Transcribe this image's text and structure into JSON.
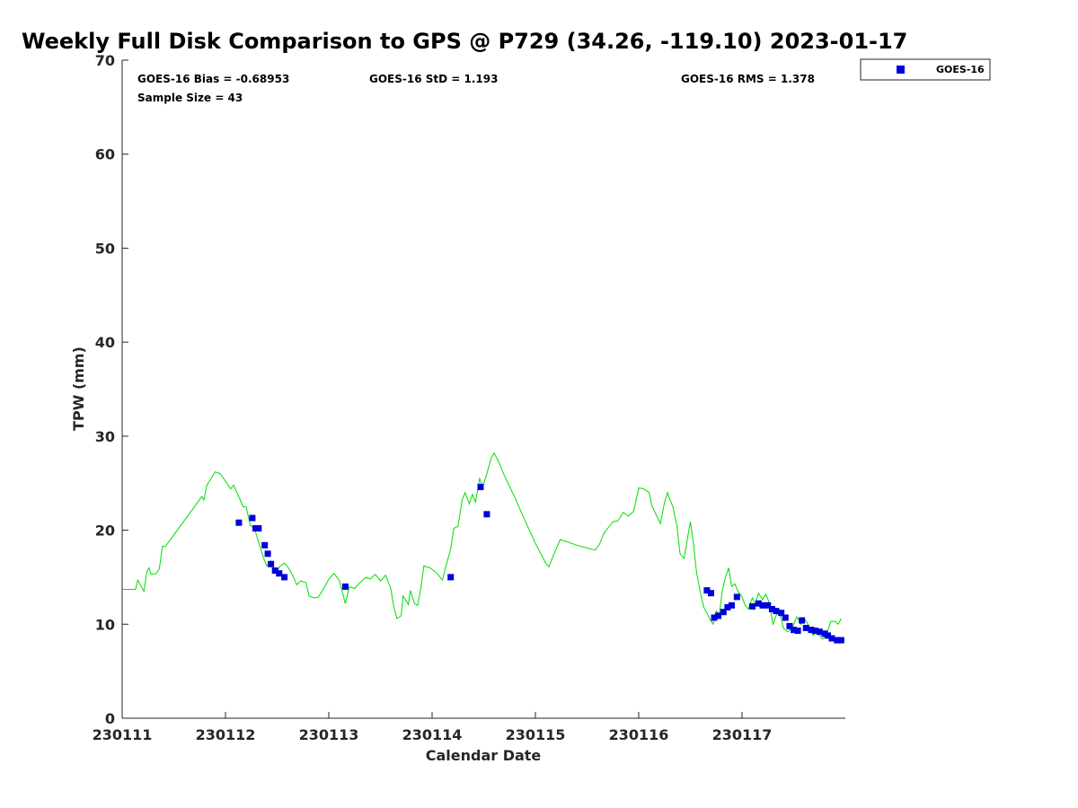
{
  "chart_data": {
    "type": "line+scatter",
    "title": "Weekly Full Disk Comparison to GPS @ P729 (34.26, -119.10) 2023-01-17",
    "xlabel": "Calendar Date",
    "ylabel": "TPW (mm)",
    "xlim": [
      0,
      7
    ],
    "ylim": [
      0,
      70
    ],
    "x_ticks": [
      {
        "value": 0,
        "label": "230111"
      },
      {
        "value": 1,
        "label": "230112"
      },
      {
        "value": 2,
        "label": "230113"
      },
      {
        "value": 3,
        "label": "230114"
      },
      {
        "value": 4,
        "label": "230115"
      },
      {
        "value": 5,
        "label": "230116"
      },
      {
        "value": 6,
        "label": "230117"
      }
    ],
    "y_ticks": [
      0,
      10,
      20,
      30,
      40,
      50,
      60,
      70
    ],
    "stats": {
      "bias": "GOES-16 Bias = -0.68953",
      "std": "GOES-16 StD = 1.193",
      "rms": "GOES-16 RMS = 1.378",
      "sample_size": "Sample Size = 43"
    },
    "legend": {
      "location": "top-right-outside",
      "entries": [
        "GOES-16"
      ]
    },
    "series": [
      {
        "name": "GPS",
        "kind": "line",
        "color": "#00dd00",
        "points": [
          [
            0.0,
            13.7
          ],
          [
            0.13,
            13.7
          ],
          [
            0.15,
            14.7
          ],
          [
            0.21,
            13.5
          ],
          [
            0.24,
            15.6
          ],
          [
            0.26,
            16.0
          ],
          [
            0.28,
            15.3
          ],
          [
            0.33,
            15.4
          ],
          [
            0.36,
            15.9
          ],
          [
            0.39,
            18.3
          ],
          [
            0.42,
            18.3
          ],
          [
            0.5,
            19.5
          ],
          [
            0.6,
            21.0
          ],
          [
            0.7,
            22.5
          ],
          [
            0.77,
            23.6
          ],
          [
            0.79,
            23.2
          ],
          [
            0.82,
            24.8
          ],
          [
            0.86,
            25.5
          ],
          [
            0.9,
            26.2
          ],
          [
            0.95,
            26.0
          ],
          [
            1.0,
            25.2
          ],
          [
            1.05,
            24.4
          ],
          [
            1.08,
            24.8
          ],
          [
            1.11,
            24.0
          ],
          [
            1.14,
            23.3
          ],
          [
            1.17,
            22.5
          ],
          [
            1.2,
            22.5
          ],
          [
            1.24,
            20.5
          ],
          [
            1.28,
            20.2
          ],
          [
            1.33,
            18.4
          ],
          [
            1.37,
            17.0
          ],
          [
            1.4,
            16.2
          ],
          [
            1.44,
            16.7
          ],
          [
            1.47,
            16.0
          ],
          [
            1.5,
            15.7
          ],
          [
            1.53,
            16.2
          ],
          [
            1.57,
            16.5
          ],
          [
            1.61,
            16.0
          ],
          [
            1.65,
            15.2
          ],
          [
            1.69,
            14.2
          ],
          [
            1.73,
            14.6
          ],
          [
            1.78,
            14.4
          ],
          [
            1.81,
            13.0
          ],
          [
            1.86,
            12.8
          ],
          [
            1.9,
            12.9
          ],
          [
            1.95,
            13.8
          ],
          [
            2.0,
            14.8
          ],
          [
            2.05,
            15.4
          ],
          [
            2.1,
            14.7
          ],
          [
            2.13,
            13.5
          ],
          [
            2.16,
            12.2
          ],
          [
            2.2,
            14.0
          ],
          [
            2.25,
            13.8
          ],
          [
            2.3,
            14.4
          ],
          [
            2.36,
            15.0
          ],
          [
            2.4,
            14.8
          ],
          [
            2.45,
            15.3
          ],
          [
            2.5,
            14.6
          ],
          [
            2.55,
            15.2
          ],
          [
            2.6,
            13.8
          ],
          [
            2.63,
            11.8
          ],
          [
            2.66,
            10.6
          ],
          [
            2.7,
            10.9
          ],
          [
            2.72,
            13.0
          ],
          [
            2.77,
            12.1
          ],
          [
            2.79,
            13.6
          ],
          [
            2.83,
            12.2
          ],
          [
            2.86,
            12.0
          ],
          [
            2.89,
            13.8
          ],
          [
            2.92,
            16.2
          ],
          [
            2.98,
            16.0
          ],
          [
            3.04,
            15.5
          ],
          [
            3.1,
            14.7
          ],
          [
            3.13,
            16.0
          ],
          [
            3.18,
            18.0
          ],
          [
            3.21,
            20.2
          ],
          [
            3.25,
            20.4
          ],
          [
            3.29,
            23.2
          ],
          [
            3.32,
            24.0
          ],
          [
            3.36,
            22.8
          ],
          [
            3.39,
            23.8
          ],
          [
            3.42,
            23.0
          ],
          [
            3.46,
            25.5
          ],
          [
            3.49,
            24.6
          ],
          [
            3.53,
            26.0
          ],
          [
            3.57,
            27.6
          ],
          [
            3.6,
            28.2
          ],
          [
            3.64,
            27.4
          ],
          [
            3.7,
            25.8
          ],
          [
            3.8,
            23.5
          ],
          [
            3.9,
            21.0
          ],
          [
            4.0,
            18.6
          ],
          [
            4.1,
            16.5
          ],
          [
            4.13,
            16.1
          ],
          [
            4.17,
            17.2
          ],
          [
            4.2,
            18.0
          ],
          [
            4.24,
            19.0
          ],
          [
            4.3,
            18.8
          ],
          [
            4.4,
            18.4
          ],
          [
            4.5,
            18.1
          ],
          [
            4.58,
            17.9
          ],
          [
            4.62,
            18.5
          ],
          [
            4.66,
            19.6
          ],
          [
            4.7,
            20.2
          ],
          [
            4.75,
            20.9
          ],
          [
            4.8,
            21.0
          ],
          [
            4.85,
            21.9
          ],
          [
            4.9,
            21.5
          ],
          [
            4.95,
            22.0
          ],
          [
            5.0,
            24.5
          ],
          [
            5.05,
            24.4
          ],
          [
            5.1,
            24.0
          ],
          [
            5.13,
            22.5
          ],
          [
            5.18,
            21.4
          ],
          [
            5.21,
            20.7
          ],
          [
            5.25,
            23.0
          ],
          [
            5.28,
            24.0
          ],
          [
            5.3,
            23.3
          ],
          [
            5.33,
            22.5
          ],
          [
            5.37,
            20.5
          ],
          [
            5.4,
            17.5
          ],
          [
            5.44,
            17.0
          ],
          [
            5.47,
            19.0
          ],
          [
            5.5,
            20.9
          ],
          [
            5.53,
            18.5
          ],
          [
            5.56,
            15.5
          ],
          [
            5.6,
            13.2
          ],
          [
            5.63,
            11.8
          ],
          [
            5.66,
            11.2
          ],
          [
            5.69,
            10.5
          ],
          [
            5.72,
            10.0
          ],
          [
            5.75,
            11.4
          ],
          [
            5.78,
            11.0
          ],
          [
            5.81,
            13.6
          ],
          [
            5.84,
            15.0
          ],
          [
            5.87,
            16.0
          ],
          [
            5.9,
            14.0
          ],
          [
            5.93,
            14.3
          ],
          [
            5.96,
            13.5
          ],
          [
            6.0,
            12.9
          ],
          [
            6.03,
            12.0
          ],
          [
            6.06,
            11.6
          ],
          [
            6.1,
            12.8
          ],
          [
            6.13,
            12.2
          ],
          [
            6.16,
            13.3
          ],
          [
            6.2,
            12.6
          ],
          [
            6.23,
            13.2
          ],
          [
            6.26,
            12.4
          ],
          [
            6.3,
            10.0
          ],
          [
            6.33,
            10.9
          ],
          [
            6.36,
            11.5
          ],
          [
            6.4,
            9.6
          ],
          [
            6.44,
            9.2
          ],
          [
            6.48,
            9.5
          ],
          [
            6.5,
            10.0
          ],
          [
            6.53,
            10.8
          ],
          [
            6.57,
            10.0
          ],
          [
            6.6,
            10.6
          ],
          [
            6.63,
            10.2
          ],
          [
            6.66,
            9.4
          ],
          [
            6.69,
            8.8
          ],
          [
            6.72,
            9.3
          ],
          [
            6.75,
            8.8
          ],
          [
            6.78,
            8.4
          ],
          [
            6.82,
            9.0
          ],
          [
            6.86,
            10.3
          ],
          [
            6.9,
            10.3
          ],
          [
            6.93,
            10.0
          ],
          [
            6.96,
            10.6
          ]
        ]
      },
      {
        "name": "GOES-16",
        "kind": "scatter",
        "color": "#0000dd",
        "points": [
          [
            1.13,
            20.8
          ],
          [
            1.26,
            21.3
          ],
          [
            1.29,
            20.2
          ],
          [
            1.32,
            20.2
          ],
          [
            1.38,
            18.4
          ],
          [
            1.41,
            17.5
          ],
          [
            1.44,
            16.4
          ],
          [
            1.48,
            15.7
          ],
          [
            1.52,
            15.4
          ],
          [
            1.57,
            15.0
          ],
          [
            2.16,
            14.0
          ],
          [
            3.18,
            15.0
          ],
          [
            3.47,
            24.6
          ],
          [
            3.53,
            21.7
          ],
          [
            5.66,
            13.6
          ],
          [
            5.7,
            13.3
          ],
          [
            5.73,
            10.7
          ],
          [
            5.77,
            10.9
          ],
          [
            5.82,
            11.3
          ],
          [
            5.86,
            11.8
          ],
          [
            5.9,
            12.0
          ],
          [
            5.95,
            12.9
          ],
          [
            6.1,
            11.9
          ],
          [
            6.16,
            12.2
          ],
          [
            6.2,
            12.0
          ],
          [
            6.25,
            12.0
          ],
          [
            6.29,
            11.6
          ],
          [
            6.33,
            11.4
          ],
          [
            6.38,
            11.2
          ],
          [
            6.42,
            10.7
          ],
          [
            6.46,
            9.8
          ],
          [
            6.5,
            9.4
          ],
          [
            6.54,
            9.3
          ],
          [
            6.58,
            10.4
          ],
          [
            6.62,
            9.6
          ],
          [
            6.67,
            9.4
          ],
          [
            6.71,
            9.3
          ],
          [
            6.75,
            9.2
          ],
          [
            6.8,
            9.0
          ],
          [
            6.83,
            8.8
          ],
          [
            6.87,
            8.5
          ],
          [
            6.92,
            8.3
          ],
          [
            6.96,
            8.3
          ]
        ]
      }
    ]
  }
}
